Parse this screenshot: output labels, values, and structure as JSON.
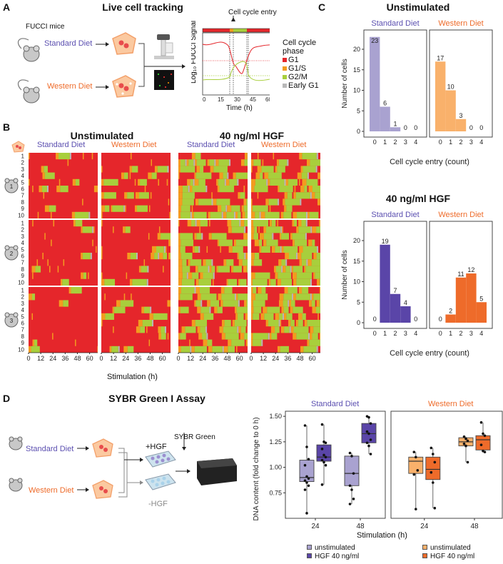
{
  "colors": {
    "g1": "#e5262b",
    "g1s": "#f39c1f",
    "g2m": "#a8cf3c",
    "early_g1": "#b8b8b8",
    "standard": "#5b4fb0",
    "western": "#ee6b2a",
    "std_light": "#a9a2d0",
    "std_dark": "#5a45a8",
    "wst_light": "#f9b16b",
    "wst_dark": "#ee6b2a"
  },
  "panelA": {
    "letter": "A",
    "title": "Live cell tracking",
    "fucci_label": "FUCCI mice",
    "standard_label": "Standard Diet",
    "western_label": "Western Diet",
    "entry_label": "Cell cycle entry",
    "ylabel": "Log10 FUCCI Signal",
    "xlabel": "Time (h)",
    "xticks": [
      "0",
      "15",
      "30",
      "45",
      "60"
    ],
    "legend_title_1": "Cell cycle",
    "legend_title_2": "phase",
    "legend": [
      "G1",
      "G1/S",
      "G2/M",
      "Early G1"
    ]
  },
  "panelB": {
    "letter": "B",
    "unstim_title": "Unstimulated",
    "hgf_title": "40 ng/ml HGF",
    "std_label": "Standard Diet",
    "wst_label": "Western Diet",
    "mouse_labels": [
      "1",
      "2",
      "3"
    ],
    "row_labels": [
      "1",
      "2",
      "3",
      "4",
      "5",
      "6",
      "7",
      "8",
      "9",
      "10"
    ],
    "xticks": [
      "0",
      "12",
      "24",
      "36",
      "48",
      "60"
    ],
    "xlabel": "Stimulation (h)"
  },
  "chart_data": [
    {
      "type": "bar",
      "title": "Unstimulated — Standard Diet",
      "group": "Unstimulated",
      "subtitle": "Standard Diet",
      "categories": [
        "0",
        "1",
        "2",
        "3",
        "4"
      ],
      "values": [
        23,
        6,
        1,
        0,
        0
      ],
      "xlabel": "Cell cycle entry (count)",
      "ylabel": "Number of cells",
      "ylim": [
        0,
        24
      ],
      "yticks": [
        "0",
        "5",
        "10",
        "15",
        "20"
      ]
    },
    {
      "type": "bar",
      "title": "Unstimulated — Western Diet",
      "group": "Unstimulated",
      "subtitle": "Western Diet",
      "categories": [
        "0",
        "1",
        "2",
        "3",
        "4"
      ],
      "values": [
        17,
        10,
        3,
        0,
        0
      ],
      "xlabel": "Cell cycle entry (count)",
      "ylabel": "Number of cells",
      "ylim": [
        0,
        24
      ]
    },
    {
      "type": "bar",
      "title": "40 ng/ml HGF — Standard Diet",
      "group": "40 ng/ml HGF",
      "subtitle": "Standard Diet",
      "categories": [
        "0",
        "1",
        "2",
        "3",
        "4"
      ],
      "values": [
        0,
        19,
        7,
        4,
        0
      ],
      "xlabel": "Cell cycle entry (count)",
      "ylabel": "Number of cells",
      "ylim": [
        0,
        24
      ],
      "yticks": [
        "0",
        "5",
        "10",
        "15",
        "20"
      ]
    },
    {
      "type": "bar",
      "title": "40 ng/ml HGF — Western Diet",
      "group": "40 ng/ml HGF",
      "subtitle": "Western Diet",
      "categories": [
        "0",
        "1",
        "2",
        "3",
        "4"
      ],
      "values": [
        0,
        2,
        11,
        12,
        5
      ],
      "xlabel": "Cell cycle entry (count)",
      "ylabel": "Number of cells",
      "ylim": [
        0,
        24
      ]
    },
    {
      "type": "box",
      "title": "Standard Diet",
      "xlabel": "Stimulation (h)",
      "ylabel": "DNA content (fold change to 0 h)",
      "ylim": [
        0.5,
        1.55
      ],
      "yticks": [
        "0.75",
        "1.00",
        "1.25",
        "1.50"
      ],
      "categories": [
        "24",
        "48"
      ],
      "series": [
        {
          "name": "unstimulated",
          "boxes": [
            {
              "x": "24",
              "q1": 0.86,
              "median": 0.9,
              "q3": 1.07,
              "low": 0.55,
              "high": 1.41,
              "points": [
                1.41,
                1.2,
                1.08,
                1.02,
                0.91,
                0.89,
                0.87,
                0.85,
                0.82,
                0.78,
                0.55
              ]
            },
            {
              "x": "48",
              "q1": 0.82,
              "median": 0.94,
              "q3": 1.11,
              "low": 0.64,
              "high": 1.14,
              "points": [
                1.14,
                1.11,
                0.94,
                0.82,
                0.78,
                0.69,
                0.64
              ]
            }
          ]
        },
        {
          "name": "HGF 40 ng/ml",
          "boxes": [
            {
              "x": "24",
              "q1": 1.06,
              "median": 1.1,
              "q3": 1.22,
              "low": 0.83,
              "high": 1.42,
              "points": [
                1.42,
                1.25,
                1.24,
                1.18,
                1.12,
                1.1,
                1.07,
                1.05,
                1.02,
                0.83
              ]
            },
            {
              "x": "48",
              "q1": 1.24,
              "median": 1.33,
              "q3": 1.43,
              "low": 1.13,
              "high": 1.5,
              "points": [
                1.5,
                1.49,
                1.43,
                1.35,
                1.33,
                1.27,
                1.24,
                1.21,
                1.13
              ]
            }
          ]
        }
      ]
    },
    {
      "type": "box",
      "title": "Western Diet",
      "xlabel": "Stimulation (h)",
      "ylabel": "DNA content (fold change to 0 h)",
      "ylim": [
        0.5,
        1.55
      ],
      "categories": [
        "24",
        "48"
      ],
      "series": [
        {
          "name": "unstimulated",
          "boxes": [
            {
              "x": "24",
              "q1": 0.94,
              "median": 1.06,
              "q3": 1.1,
              "low": 0.59,
              "high": 1.15,
              "points": [
                1.15,
                1.1,
                0.97,
                0.93,
                0.59
              ]
            },
            {
              "x": "48",
              "q1": 1.21,
              "median": 1.25,
              "q3": 1.29,
              "low": 1.05,
              "high": 1.3,
              "points": [
                1.3,
                1.28,
                1.26,
                1.23,
                1.21,
                1.05
              ]
            }
          ]
        },
        {
          "name": "HGF 40 ng/ml",
          "boxes": [
            {
              "x": "24",
              "q1": 0.88,
              "median": 0.98,
              "q3": 1.1,
              "low": 0.6,
              "high": 1.19,
              "points": [
                1.19,
                1.13,
                1.05,
                0.95,
                0.85,
                0.6
              ]
            },
            {
              "x": "48",
              "q1": 1.17,
              "median": 1.27,
              "q3": 1.31,
              "low": 1.15,
              "high": 1.44,
              "points": [
                1.44,
                1.33,
                1.31,
                1.22,
                1.16,
                1.15
              ]
            }
          ]
        }
      ]
    }
  ],
  "panelC": {
    "letter": "C",
    "unstim_title": "Unstimulated",
    "hgf_title": "40 ng/ml HGF",
    "std_label": "Standard Diet",
    "wst_label": "Western Diet",
    "ylabel": "Number of cells",
    "xlabel": "Cell cycle entry (count)"
  },
  "panelD": {
    "letter": "D",
    "title": "SYBR Green I Assay",
    "standard_label": "Standard Diet",
    "western_label": "Western Diet",
    "plus_hgf": "+HGF",
    "minus_hgf": "-HGF",
    "sybr_label": "SYBR Green",
    "std_title": "Standard Diet",
    "wst_title": "Western Diet",
    "ylabel": "DNA content (fold change to 0 h)",
    "xlabel": "Stimulation (h)",
    "legend_std": [
      "unstimulated",
      "HGF 40 ng/ml"
    ],
    "legend_wst": [
      "unstimulated",
      "HGF 40 ng/ml"
    ]
  }
}
